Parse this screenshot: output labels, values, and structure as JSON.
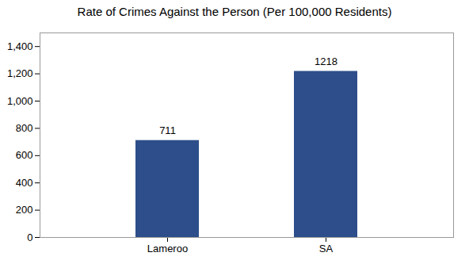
{
  "chart_data": {
    "type": "bar",
    "title": "Rate of Crimes Against the Person (Per 100,000 Residents)",
    "categories": [
      "Lameroo",
      "SA"
    ],
    "values": [
      711,
      1218
    ],
    "color": "#2d4e8a",
    "ylim": [
      0,
      1500
    ],
    "yticks": [
      0,
      200,
      400,
      600,
      800,
      1000,
      1200,
      1400
    ],
    "grid": false,
    "data_labels": true
  }
}
